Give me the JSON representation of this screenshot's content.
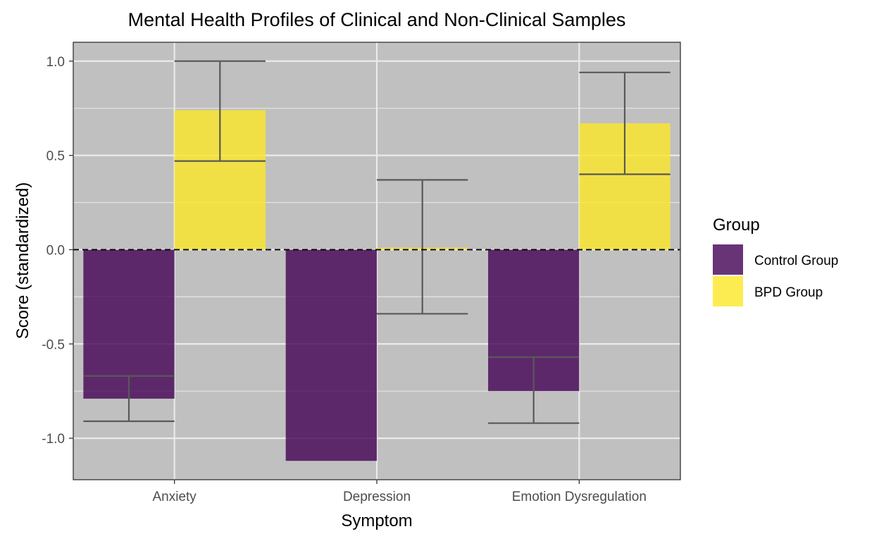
{
  "chart_data": {
    "type": "bar",
    "title": "Mental Health Profiles of Clinical and Non-Clinical Samples",
    "xlabel": "Symptom",
    "ylabel": "Score (standardized)",
    "categories": [
      "Anxiety",
      "Depression",
      "Emotion Dysregulation"
    ],
    "series": [
      {
        "name": "Control Group",
        "color": "#440154",
        "values": [
          -0.79,
          -1.12,
          -0.75
        ],
        "error_low": [
          -0.91,
          null,
          -0.92
        ],
        "error_high": [
          -0.67,
          null,
          -0.57
        ]
      },
      {
        "name": "BPD Group",
        "color": "#FDE725",
        "values": [
          0.74,
          0.01,
          0.67
        ],
        "error_low": [
          0.47,
          -0.34,
          0.4
        ],
        "error_high": [
          1.0,
          0.37,
          0.94
        ]
      }
    ],
    "ylim": [
      -1.22,
      1.1
    ],
    "yticks": [
      -1.0,
      -0.5,
      0.0,
      0.5,
      1.0
    ],
    "ytick_labels": [
      "-1.0",
      "-0.5",
      "0.0",
      "0.5",
      "1.0"
    ],
    "reference_line": 0,
    "grid": true,
    "legend": {
      "title": "Group",
      "position": "right"
    },
    "panel_background": "#C0C0C0"
  }
}
